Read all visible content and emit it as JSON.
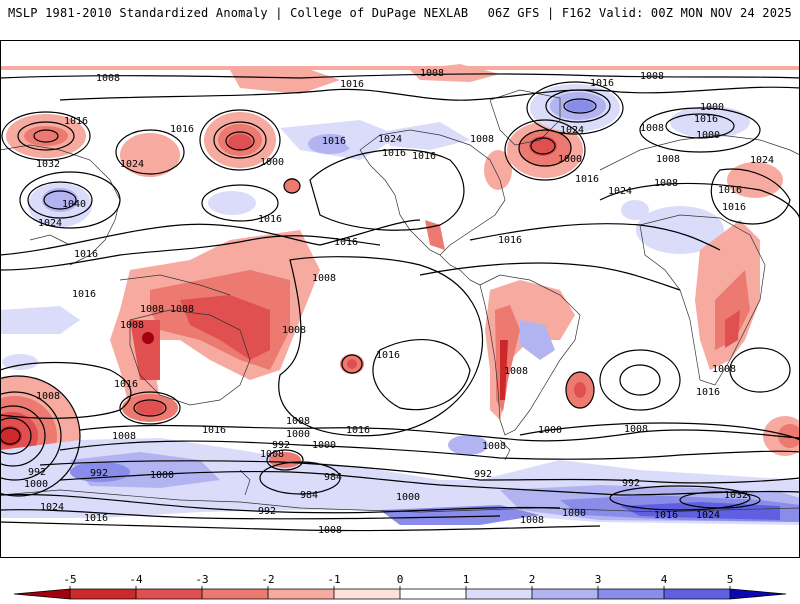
{
  "header": {
    "title_left": "MSLP 1981-2010 Standardized Anomaly | College of DuPage NEXLAB",
    "title_right": "06Z GFS | F162 Valid: 00Z MON NOV 24 2025"
  },
  "colorbar": {
    "ticks": [
      "-5",
      "-4",
      "-3",
      "-2",
      "-1",
      "0",
      "1",
      "2",
      "3",
      "4",
      "5"
    ],
    "colors": [
      "#a00010",
      "#cc2a2a",
      "#e05050",
      "#ec7a70",
      "#f6aaa0",
      "#fde0da",
      "#ffffff",
      "#dadcfa",
      "#b2b4f2",
      "#8a8cea",
      "#5e60e0",
      "#3232d6",
      "#0a0ab4"
    ]
  },
  "isobar_labels": [
    {
      "id": "l1",
      "text": "1008"
    },
    {
      "id": "l2",
      "text": "1008"
    },
    {
      "id": "l3",
      "text": "1008"
    },
    {
      "id": "l4",
      "text": "1016"
    },
    {
      "id": "l5",
      "text": "1016"
    },
    {
      "id": "l6",
      "text": "1000"
    },
    {
      "id": "l7",
      "text": "1016"
    },
    {
      "id": "l8",
      "text": "1016"
    },
    {
      "id": "l9",
      "text": "1008"
    },
    {
      "id": "l10",
      "text": "1016"
    },
    {
      "id": "l11",
      "text": "1032"
    },
    {
      "id": "l12",
      "text": "1024"
    },
    {
      "id": "l13",
      "text": "1000"
    },
    {
      "id": "l14",
      "text": "1040"
    },
    {
      "id": "l15",
      "text": "1016"
    },
    {
      "id": "l16",
      "text": "1024"
    },
    {
      "id": "l17",
      "text": "1016"
    },
    {
      "id": "l18",
      "text": "1016"
    },
    {
      "id": "l19",
      "text": "1016"
    },
    {
      "id": "l20",
      "text": "1024"
    },
    {
      "id": "l21",
      "text": "1016"
    },
    {
      "id": "l22",
      "text": "1016"
    },
    {
      "id": "l23",
      "text": "1008"
    },
    {
      "id": "l24",
      "text": "1024"
    },
    {
      "id": "l25",
      "text": "1000"
    },
    {
      "id": "l26",
      "text": "1016"
    },
    {
      "id": "l27",
      "text": "1024"
    },
    {
      "id": "l28",
      "text": "1000"
    },
    {
      "id": "l29",
      "text": "1016"
    },
    {
      "id": "l30",
      "text": "1008"
    },
    {
      "id": "l31",
      "text": "1008"
    },
    {
      "id": "l32",
      "text": "1016"
    },
    {
      "id": "l33",
      "text": "1024"
    },
    {
      "id": "l34",
      "text": "1016"
    },
    {
      "id": "l35",
      "text": "1008"
    },
    {
      "id": "l36",
      "text": "1016"
    },
    {
      "id": "l37",
      "text": "1008"
    },
    {
      "id": "l38",
      "text": "1008"
    },
    {
      "id": "l39",
      "text": "1008"
    },
    {
      "id": "l40",
      "text": "1008"
    },
    {
      "id": "l41",
      "text": "1016"
    },
    {
      "id": "l42",
      "text": "1016"
    },
    {
      "id": "l43",
      "text": "1008"
    },
    {
      "id": "l44",
      "text": "1008"
    },
    {
      "id": "l45",
      "text": "1016"
    },
    {
      "id": "l46",
      "text": "1008"
    },
    {
      "id": "l47",
      "text": "1016"
    },
    {
      "id": "l48",
      "text": "1016"
    },
    {
      "id": "l49",
      "text": "1008"
    },
    {
      "id": "l50",
      "text": "1000"
    },
    {
      "id": "l51",
      "text": "992"
    },
    {
      "id": "l52",
      "text": "1000"
    },
    {
      "id": "l53",
      "text": "1008"
    },
    {
      "id": "l54",
      "text": "1000"
    },
    {
      "id": "l55",
      "text": "1008"
    },
    {
      "id": "l56",
      "text": "1008"
    },
    {
      "id": "l57",
      "text": "992"
    },
    {
      "id": "l58",
      "text": "1000"
    },
    {
      "id": "l59",
      "text": "1024"
    },
    {
      "id": "l60",
      "text": "1016"
    },
    {
      "id": "l61",
      "text": "992"
    },
    {
      "id": "l62",
      "text": "1000"
    },
    {
      "id": "l63",
      "text": "1008"
    },
    {
      "id": "l64",
      "text": "984"
    },
    {
      "id": "l65",
      "text": "984"
    },
    {
      "id": "l66",
      "text": "992"
    },
    {
      "id": "l67",
      "text": "1000"
    },
    {
      "id": "l68",
      "text": "1008"
    },
    {
      "id": "l69",
      "text": "992"
    },
    {
      "id": "l70",
      "text": "1000"
    },
    {
      "id": "l71",
      "text": "1008"
    },
    {
      "id": "l72",
      "text": "1016"
    },
    {
      "id": "l73",
      "text": "1024"
    },
    {
      "id": "l74",
      "text": "1032"
    },
    {
      "id": "l75",
      "text": "992"
    }
  ]
}
